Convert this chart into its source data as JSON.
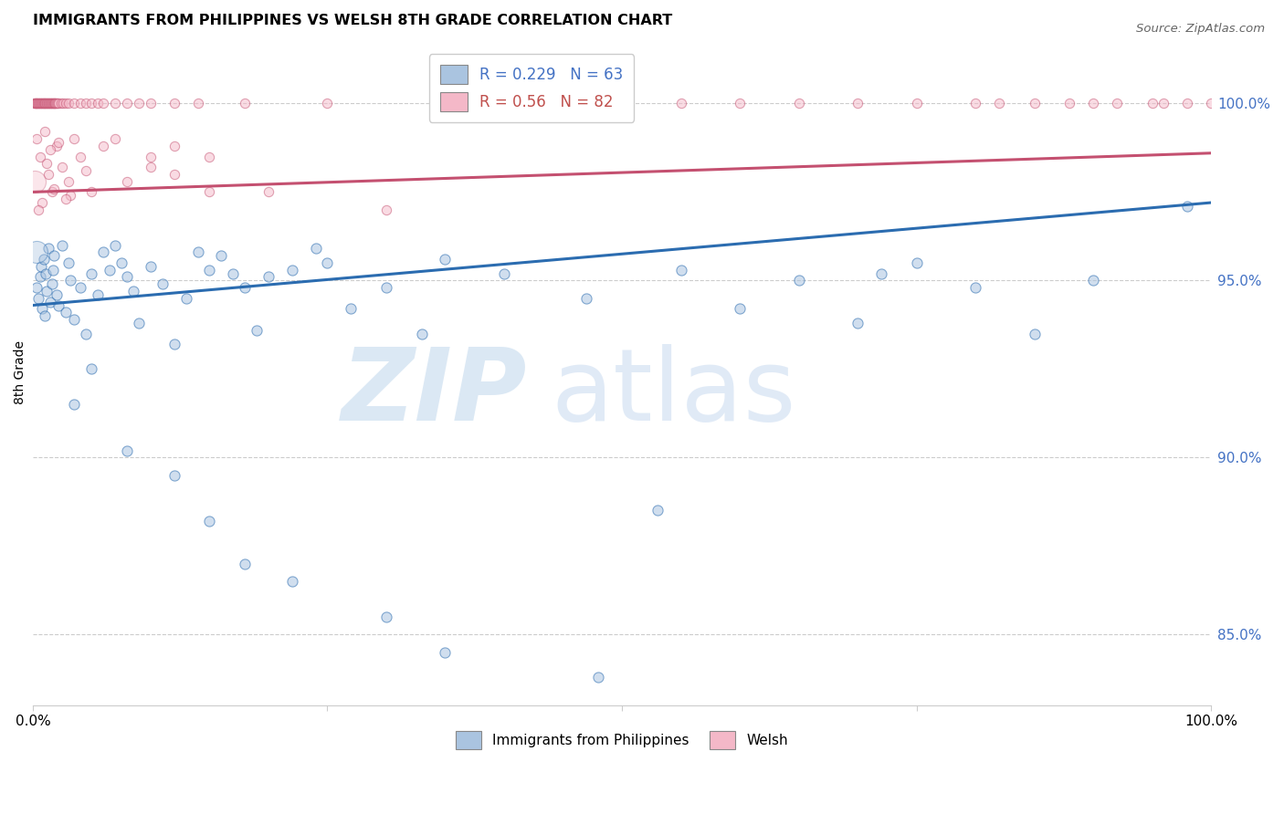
{
  "title": "IMMIGRANTS FROM PHILIPPINES VS WELSH 8TH GRADE CORRELATION CHART",
  "source": "Source: ZipAtlas.com",
  "ylabel": "8th Grade",
  "y_ticks": [
    85.0,
    90.0,
    95.0,
    100.0
  ],
  "y_tick_labels": [
    "85.0%",
    "90.0%",
    "95.0%",
    "100.0%"
  ],
  "x_range": [
    0.0,
    100.0
  ],
  "y_range": [
    83.0,
    101.8
  ],
  "blue_R": 0.229,
  "blue_N": 63,
  "pink_R": 0.56,
  "pink_N": 82,
  "blue_color": "#aac4e0",
  "pink_color": "#f4b8c8",
  "blue_line_color": "#2b6cb0",
  "pink_line_color": "#c45070",
  "blue_trend_x": [
    0.0,
    100.0
  ],
  "blue_trend_y": [
    94.3,
    97.2
  ],
  "pink_trend_x": [
    0.0,
    100.0
  ],
  "pink_trend_y": [
    97.5,
    98.6
  ],
  "watermark_zip": "ZIP",
  "watermark_atlas": "atlas",
  "background_color": "#ffffff",
  "blue_scatter_x": [
    0.3,
    0.5,
    0.6,
    0.7,
    0.8,
    0.9,
    1.0,
    1.1,
    1.2,
    1.3,
    1.5,
    1.6,
    1.7,
    1.8,
    2.0,
    2.2,
    2.5,
    2.8,
    3.0,
    3.2,
    3.5,
    4.0,
    4.5,
    5.0,
    5.5,
    6.0,
    6.5,
    7.0,
    7.5,
    8.0,
    8.5,
    9.0,
    10.0,
    11.0,
    12.0,
    13.0,
    14.0,
    15.0,
    16.0,
    17.0,
    18.0,
    19.0,
    20.0,
    22.0,
    24.0,
    25.0,
    27.0,
    30.0,
    33.0,
    35.0,
    40.0,
    47.0,
    53.0,
    55.0,
    60.0,
    65.0,
    70.0,
    72.0,
    75.0,
    80.0,
    85.0,
    90.0,
    98.0
  ],
  "blue_scatter_y": [
    94.8,
    94.5,
    95.1,
    95.4,
    94.2,
    95.6,
    94.0,
    95.2,
    94.7,
    95.9,
    94.4,
    94.9,
    95.3,
    95.7,
    94.6,
    94.3,
    96.0,
    94.1,
    95.5,
    95.0,
    93.9,
    94.8,
    93.5,
    95.2,
    94.6,
    95.8,
    95.3,
    96.0,
    95.5,
    95.1,
    94.7,
    93.8,
    95.4,
    94.9,
    93.2,
    94.5,
    95.8,
    95.3,
    95.7,
    95.2,
    94.8,
    93.6,
    95.1,
    95.3,
    95.9,
    95.5,
    94.2,
    94.8,
    93.5,
    95.6,
    95.2,
    94.5,
    88.5,
    95.3,
    94.2,
    95.0,
    93.8,
    95.2,
    95.5,
    94.8,
    93.5,
    95.0,
    97.1
  ],
  "blue_scatter_y_outliers": [
    91.5,
    92.5,
    90.2,
    89.5,
    88.2,
    87.0,
    86.5,
    85.5,
    84.5,
    83.8
  ],
  "blue_scatter_x_outliers": [
    3.5,
    5.0,
    8.0,
    12.0,
    15.0,
    18.0,
    22.0,
    30.0,
    35.0,
    48.0
  ],
  "pink_scatter_x": [
    0.1,
    0.15,
    0.2,
    0.25,
    0.3,
    0.35,
    0.4,
    0.45,
    0.5,
    0.55,
    0.6,
    0.65,
    0.7,
    0.75,
    0.8,
    0.85,
    0.9,
    0.95,
    1.0,
    1.05,
    1.1,
    1.15,
    1.2,
    1.25,
    1.3,
    1.35,
    1.4,
    1.45,
    1.5,
    1.55,
    1.6,
    1.65,
    1.7,
    1.75,
    1.8,
    1.85,
    1.9,
    1.95,
    2.0,
    2.1,
    2.2,
    2.4,
    2.6,
    2.8,
    3.0,
    3.5,
    4.0,
    4.5,
    5.0,
    5.5,
    6.0,
    7.0,
    8.0,
    9.0,
    10.0,
    12.0,
    14.0,
    18.0,
    25.0,
    35.0,
    45.0,
    55.0,
    65.0,
    75.0,
    82.0,
    88.0,
    92.0,
    96.0,
    100.0,
    50.0,
    60.0,
    70.0,
    80.0,
    85.0,
    90.0,
    95.0,
    98.0,
    10.0,
    12.0,
    15.0,
    20.0,
    30.0
  ],
  "pink_scatter_y": [
    100.0,
    100.0,
    100.0,
    100.0,
    100.0,
    100.0,
    100.0,
    100.0,
    100.0,
    100.0,
    100.0,
    100.0,
    100.0,
    100.0,
    100.0,
    100.0,
    100.0,
    100.0,
    100.0,
    100.0,
    100.0,
    100.0,
    100.0,
    100.0,
    100.0,
    100.0,
    100.0,
    100.0,
    100.0,
    100.0,
    100.0,
    100.0,
    100.0,
    100.0,
    100.0,
    100.0,
    100.0,
    100.0,
    100.0,
    100.0,
    100.0,
    100.0,
    100.0,
    100.0,
    100.0,
    100.0,
    100.0,
    100.0,
    100.0,
    100.0,
    100.0,
    100.0,
    100.0,
    100.0,
    100.0,
    100.0,
    100.0,
    100.0,
    100.0,
    100.0,
    100.0,
    100.0,
    100.0,
    100.0,
    100.0,
    100.0,
    100.0,
    100.0,
    100.0,
    100.0,
    100.0,
    100.0,
    100.0,
    100.0,
    100.0,
    100.0,
    100.0,
    98.2,
    98.8,
    98.5,
    97.5,
    97.0
  ],
  "pink_non100_x": [
    0.3,
    0.6,
    1.0,
    1.3,
    1.6,
    2.0,
    2.5,
    3.0,
    3.5,
    4.0,
    5.0,
    6.0,
    7.0,
    8.0,
    10.0,
    12.0,
    15.0,
    0.8,
    1.2,
    1.8,
    2.2,
    3.2,
    4.5,
    0.5,
    1.5,
    2.8
  ],
  "pink_non100_y": [
    99.0,
    98.5,
    99.2,
    98.0,
    97.5,
    98.8,
    98.2,
    97.8,
    99.0,
    98.5,
    97.5,
    98.8,
    99.0,
    97.8,
    98.5,
    98.0,
    97.5,
    97.2,
    98.3,
    97.6,
    98.9,
    97.4,
    98.1,
    97.0,
    98.7,
    97.3
  ]
}
